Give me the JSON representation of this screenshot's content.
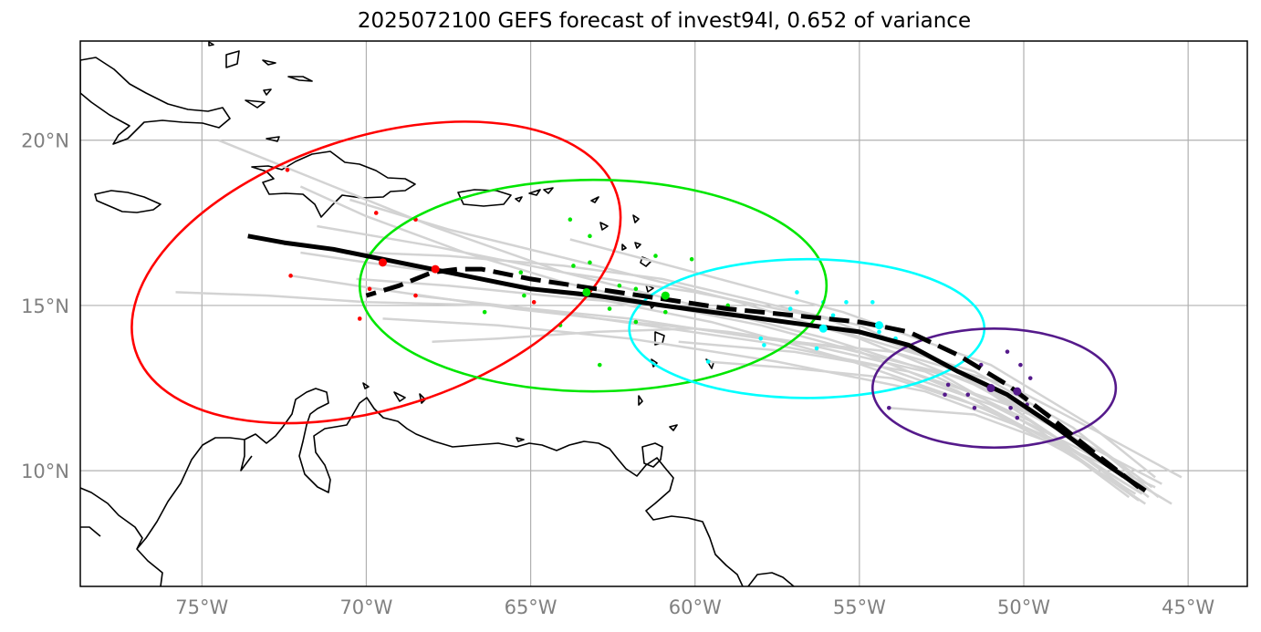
{
  "title": "2025072100 GEFS forecast of invest94l, 0.652 of variance",
  "axes": {
    "lon_labels": [
      "75°W",
      "70°W",
      "65°W",
      "60°W",
      "55°W",
      "50°W",
      "45°W"
    ],
    "lat_labels": [
      "20°N",
      "15°N",
      "10°N"
    ],
    "lon_range": [
      -78.7,
      -43.2
    ],
    "lat_range": [
      6.5,
      23.0
    ],
    "grid": true
  },
  "colors": {
    "ensemble": "#d3d3d3",
    "mean_track": "#000000",
    "ellipse_day1": "#ff0000",
    "ellipse_day2": "#00e600",
    "ellipse_day3": "#00ffff",
    "ellipse_day4": "#551a8b"
  },
  "chart_data": {
    "type": "map",
    "mean_track": [
      [
        -46.3,
        9.4
      ],
      [
        -47.5,
        10.2
      ],
      [
        -49.0,
        11.3
      ],
      [
        -50.5,
        12.3
      ],
      [
        -52.0,
        13.0
      ],
      [
        -53.5,
        13.8
      ],
      [
        -55.0,
        14.2
      ],
      [
        -56.5,
        14.4
      ],
      [
        -58.0,
        14.6
      ],
      [
        -59.5,
        14.8
      ],
      [
        -61.0,
        15.0
      ],
      [
        -63.0,
        15.3
      ],
      [
        -65.0,
        15.5
      ],
      [
        -66.5,
        15.8
      ],
      [
        -68.0,
        16.1
      ],
      [
        -69.5,
        16.4
      ],
      [
        -71.0,
        16.7
      ],
      [
        -72.5,
        16.9
      ],
      [
        -73.6,
        17.1
      ]
    ],
    "dashed_track": [
      [
        -46.5,
        9.5
      ],
      [
        -47.8,
        10.5
      ],
      [
        -49.3,
        11.7
      ],
      [
        -50.5,
        12.6
      ],
      [
        -52.0,
        13.5
      ],
      [
        -53.5,
        14.2
      ],
      [
        -55.0,
        14.5
      ],
      [
        -57.0,
        14.7
      ],
      [
        -59.0,
        14.9
      ],
      [
        -61.0,
        15.2
      ],
      [
        -63.0,
        15.5
      ],
      [
        -65.0,
        15.8
      ],
      [
        -66.5,
        16.1
      ],
      [
        -67.2,
        16.1
      ],
      [
        -68.0,
        16.0
      ],
      [
        -69.0,
        15.6
      ],
      [
        -70.0,
        15.3
      ]
    ],
    "ellipses": [
      {
        "cx": -69.7,
        "cy": 16.0,
        "rx": 7.7,
        "ry": 4.1,
        "angle_deg": 18,
        "color": "#ff0000",
        "centers": [
          [
            -69.5,
            16.3
          ],
          [
            -67.9,
            16.1
          ]
        ],
        "members": [
          [
            -72.4,
            19.1
          ],
          [
            -69.7,
            17.8
          ],
          [
            -68.5,
            17.6
          ],
          [
            -72.3,
            15.9
          ],
          [
            -68.5,
            15.3
          ],
          [
            -70.2,
            14.6
          ],
          [
            -69.9,
            15.5
          ],
          [
            -64.9,
            15.1
          ]
        ]
      },
      {
        "cx": -63.1,
        "cy": 15.6,
        "rx": 7.1,
        "ry": 3.2,
        "angle_deg": 0,
        "color": "#00e600",
        "centers": [
          [
            -63.3,
            15.4
          ],
          [
            -60.9,
            15.3
          ]
        ],
        "members": [
          [
            -63.8,
            17.6
          ],
          [
            -63.2,
            17.1
          ],
          [
            -61.2,
            16.5
          ],
          [
            -61.8,
            15.5
          ],
          [
            -65.3,
            16.0
          ],
          [
            -63.2,
            16.3
          ],
          [
            -63.7,
            16.2
          ],
          [
            -62.3,
            15.6
          ],
          [
            -64.1,
            14.4
          ],
          [
            -62.6,
            14.9
          ],
          [
            -61.8,
            14.5
          ],
          [
            -60.9,
            14.8
          ],
          [
            -59.0,
            15.0
          ],
          [
            -62.9,
            13.2
          ],
          [
            -66.4,
            14.8
          ],
          [
            -65.2,
            15.3
          ],
          [
            -60.1,
            16.4
          ]
        ]
      },
      {
        "cx": -56.6,
        "cy": 14.3,
        "rx": 5.4,
        "ry": 2.1,
        "angle_deg": 0,
        "color": "#00ffff",
        "centers": [
          [
            -56.1,
            14.3
          ],
          [
            -54.4,
            14.4
          ]
        ],
        "members": [
          [
            -56.9,
            15.4
          ],
          [
            -56.1,
            15.1
          ],
          [
            -55.4,
            15.1
          ],
          [
            -54.6,
            15.1
          ],
          [
            -57.1,
            14.9
          ],
          [
            -55.8,
            14.7
          ],
          [
            -54.4,
            14.2
          ],
          [
            -53.9,
            14.0
          ],
          [
            -57.9,
            13.8
          ],
          [
            -58.0,
            14.0
          ],
          [
            -56.3,
            13.7
          ],
          [
            -59.6,
            13.3
          ]
        ]
      },
      {
        "cx": -50.9,
        "cy": 12.5,
        "rx": 3.7,
        "ry": 1.8,
        "angle_deg": 0,
        "color": "#551a8b",
        "centers": [
          [
            -51.0,
            12.5
          ],
          [
            -50.2,
            12.4
          ]
        ],
        "members": [
          [
            -50.5,
            13.6
          ],
          [
            -51.3,
            13.2
          ],
          [
            -50.1,
            13.2
          ],
          [
            -49.8,
            12.8
          ],
          [
            -52.3,
            12.6
          ],
          [
            -51.7,
            12.3
          ],
          [
            -49.9,
            12.0
          ],
          [
            -50.4,
            11.9
          ],
          [
            -51.5,
            11.9
          ],
          [
            -50.2,
            11.6
          ],
          [
            -54.1,
            11.9
          ],
          [
            -52.4,
            12.3
          ]
        ]
      }
    ],
    "ensemble_tracks": [
      [
        [
          -46.3,
          9.0
        ],
        [
          -49.0,
          10.8
        ],
        [
          -52.0,
          12.4
        ],
        [
          -55.0,
          13.6
        ],
        [
          -58.0,
          14.4
        ],
        [
          -61.0,
          15.0
        ],
        [
          -64.0,
          15.7
        ],
        [
          -67.0,
          16.6
        ],
        [
          -70.0,
          17.7
        ],
        [
          -72.0,
          18.6
        ]
      ],
      [
        [
          -46.8,
          9.2
        ],
        [
          -49.5,
          11.2
        ],
        [
          -52.5,
          12.9
        ],
        [
          -56.0,
          14.0
        ],
        [
          -60.0,
          15.0
        ],
        [
          -64.0,
          16.0
        ],
        [
          -68.0,
          17.4
        ],
        [
          -72.0,
          19.0
        ],
        [
          -74.5,
          20.0
        ]
      ],
      [
        [
          -45.8,
          9.6
        ],
        [
          -48.5,
          11.0
        ],
        [
          -51.5,
          12.6
        ],
        [
          -55.0,
          14.0
        ],
        [
          -59.0,
          15.2
        ],
        [
          -63.0,
          16.2
        ],
        [
          -67.5,
          17.3
        ],
        [
          -70.5,
          18.2
        ]
      ],
      [
        [
          -46.0,
          9.8
        ],
        [
          -48.0,
          11.4
        ],
        [
          -51.0,
          13.2
        ],
        [
          -55.5,
          14.8
        ],
        [
          -60.0,
          16.0
        ],
        [
          -63.8,
          17.0
        ]
      ],
      [
        [
          -45.2,
          9.8
        ],
        [
          -47.8,
          11.2
        ],
        [
          -50.5,
          12.6
        ],
        [
          -54.0,
          13.6
        ],
        [
          -58.0,
          14.0
        ],
        [
          -62.0,
          14.6
        ],
        [
          -66.0,
          15.0
        ],
        [
          -70.0,
          15.1
        ],
        [
          -73.0,
          15.3
        ],
        [
          -75.8,
          15.4
        ]
      ],
      [
        [
          -46.5,
          9.1
        ],
        [
          -49.2,
          11.0
        ],
        [
          -53.0,
          12.4
        ],
        [
          -57.5,
          13.3
        ],
        [
          -62.0,
          14.0
        ],
        [
          -66.0,
          14.4
        ],
        [
          -69.5,
          14.6
        ]
      ],
      [
        [
          -46.0,
          9.5
        ],
        [
          -48.5,
          10.6
        ],
        [
          -51.5,
          11.7
        ],
        [
          -54.1,
          11.9
        ]
      ],
      [
        [
          -46.6,
          9.3
        ],
        [
          -48.8,
          10.6
        ],
        [
          -51.2,
          11.9
        ],
        [
          -54.0,
          12.8
        ],
        [
          -57.0,
          13.1
        ],
        [
          -59.6,
          13.3
        ]
      ],
      [
        [
          -46.8,
          9.4
        ],
        [
          -49.0,
          11.0
        ],
        [
          -52.0,
          13.0
        ],
        [
          -55.0,
          14.4
        ],
        [
          -58.0,
          15.1
        ],
        [
          -61.0,
          15.8
        ],
        [
          -64.0,
          16.2
        ],
        [
          -67.5,
          16.5
        ],
        [
          -70.0,
          16.6
        ]
      ],
      [
        [
          -46.2,
          9.2
        ],
        [
          -48.6,
          11.1
        ],
        [
          -51.8,
          12.8
        ],
        [
          -55.5,
          13.7
        ],
        [
          -59.0,
          14.2
        ],
        [
          -62.0,
          14.5
        ],
        [
          -65.5,
          14.9
        ],
        [
          -69.0,
          15.4
        ],
        [
          -72.3,
          15.9
        ]
      ],
      [
        [
          -45.5,
          9.0
        ],
        [
          -48.2,
          10.6
        ],
        [
          -51.0,
          12.0
        ],
        [
          -54.5,
          13.2
        ],
        [
          -58.0,
          13.9
        ],
        [
          -61.5,
          14.4
        ],
        [
          -65.0,
          14.9
        ],
        [
          -68.5,
          15.3
        ]
      ],
      [
        [
          -47.0,
          9.8
        ],
        [
          -49.5,
          11.6
        ],
        [
          -52.5,
          13.3
        ],
        [
          -56.0,
          14.6
        ],
        [
          -60.0,
          15.4
        ],
        [
          -64.0,
          16.0
        ],
        [
          -68.0,
          16.8
        ],
        [
          -71.5,
          17.4
        ]
      ],
      [
        [
          -46.9,
          9.6
        ],
        [
          -49.8,
          11.5
        ],
        [
          -53.0,
          13.0
        ],
        [
          -56.5,
          13.8
        ],
        [
          -60.0,
          14.3
        ],
        [
          -63.0,
          14.2
        ],
        [
          -66.0,
          14.0
        ],
        [
          -68.0,
          13.9
        ]
      ],
      [
        [
          -46.4,
          9.3
        ],
        [
          -49.0,
          10.9
        ],
        [
          -52.0,
          12.2
        ],
        [
          -55.5,
          13.4
        ],
        [
          -59.5,
          14.5
        ],
        [
          -63.5,
          15.3
        ],
        [
          -67.0,
          15.9
        ],
        [
          -70.0,
          16.3
        ],
        [
          -72.0,
          16.6
        ]
      ],
      [
        [
          -46.1,
          9.5
        ],
        [
          -48.0,
          10.9
        ],
        [
          -50.5,
          12.0
        ],
        [
          -53.5,
          13.0
        ],
        [
          -57.0,
          13.6
        ],
        [
          -60.5,
          13.9
        ]
      ],
      [
        [
          -45.9,
          9.2
        ],
        [
          -48.5,
          11.3
        ],
        [
          -51.5,
          13.0
        ],
        [
          -55.5,
          14.2
        ],
        [
          -59.5,
          14.9
        ],
        [
          -63.5,
          15.2
        ],
        [
          -67.5,
          15.6
        ],
        [
          -70.3,
          15.8
        ]
      ]
    ]
  }
}
